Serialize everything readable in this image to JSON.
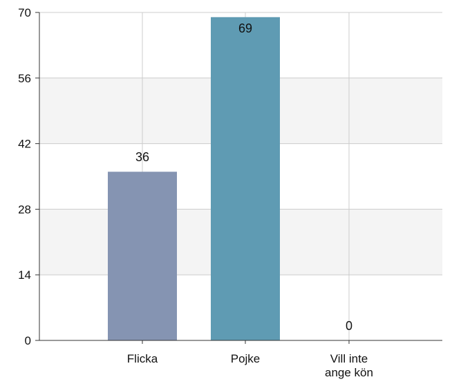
{
  "chart_data": {
    "type": "bar",
    "categories": [
      "Flicka",
      "Pojke",
      "Vill inte ange kön"
    ],
    "category_label_lines": [
      [
        "Flicka"
      ],
      [
        "Pojke"
      ],
      [
        "Vill inte",
        "ange kön"
      ]
    ],
    "values": [
      36,
      69,
      0
    ],
    "data_labels": [
      "36",
      "69",
      "0"
    ],
    "bar_colors": [
      "#8594b2",
      "#5f9bb3"
    ],
    "yticks": [
      0,
      14,
      28,
      42,
      56,
      70
    ],
    "ylim": [
      0,
      70
    ],
    "band_color": "#f4f4f4",
    "grid_color": "#cccccc",
    "axis_color": "#333333",
    "title": "",
    "xlabel": "",
    "ylabel": "",
    "grid": true
  }
}
